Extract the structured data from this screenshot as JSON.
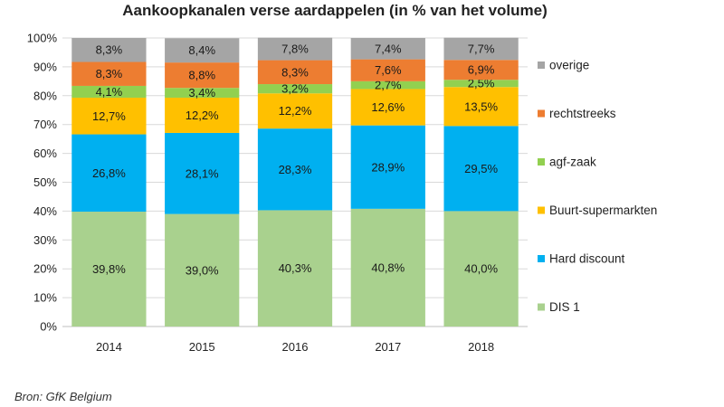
{
  "chart_data": {
    "type": "bar",
    "stacked": true,
    "title": "Aankoopkanalen verse aardappelen (in % van het volume)",
    "source": "Bron: GfK Belgium",
    "categories": [
      "2014",
      "2015",
      "2016",
      "2017",
      "2018"
    ],
    "ylim": [
      0,
      100
    ],
    "yticks": [
      "0%",
      "10%",
      "20%",
      "30%",
      "40%",
      "50%",
      "60%",
      "70%",
      "80%",
      "90%",
      "100%"
    ],
    "grid": true,
    "legend_position": "right",
    "series": [
      {
        "name": "DIS 1",
        "color": "#a9d18e",
        "values": [
          39.8,
          39.0,
          40.3,
          40.8,
          40.0
        ],
        "labels": [
          "39,8%",
          "39,0%",
          "40,3%",
          "40,8%",
          "40,0%"
        ]
      },
      {
        "name": "Hard discount",
        "color": "#00b0f0",
        "values": [
          26.8,
          28.1,
          28.3,
          28.9,
          29.5
        ],
        "labels": [
          "26,8%",
          "28,1%",
          "28,3%",
          "28,9%",
          "29,5%"
        ]
      },
      {
        "name": "Buurt-supermarkten",
        "color": "#ffc000",
        "values": [
          12.7,
          12.2,
          12.2,
          12.6,
          13.5
        ],
        "labels": [
          "12,7%",
          "12,2%",
          "12,2%",
          "12,6%",
          "13,5%"
        ]
      },
      {
        "name": "agf-zaak",
        "color": "#92d050",
        "values": [
          4.1,
          3.4,
          3.2,
          2.7,
          2.5
        ],
        "labels": [
          "4,1%",
          "3,4%",
          "3,2%",
          "2,7%",
          "2,5%"
        ]
      },
      {
        "name": "rechtstreeks",
        "color": "#ed7d31",
        "values": [
          8.3,
          8.8,
          8.3,
          7.6,
          6.9
        ],
        "labels": [
          "8,3%",
          "8,8%",
          "8,3%",
          "7,6%",
          "6,9%"
        ]
      },
      {
        "name": "overige",
        "color": "#a5a5a5",
        "values": [
          8.3,
          8.4,
          7.8,
          7.4,
          7.7
        ],
        "labels": [
          "8,3%",
          "8,4%",
          "7,8%",
          "7,4%",
          "7,7%"
        ]
      }
    ]
  }
}
